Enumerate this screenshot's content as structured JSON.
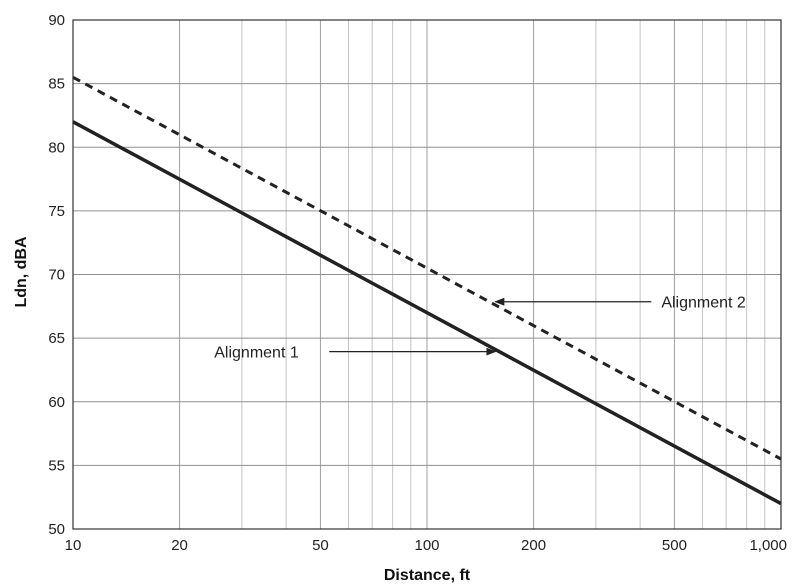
{
  "chart_data": {
    "type": "line",
    "xlabel": "Distance, ft",
    "ylabel": "Ldn, dBA",
    "x_scale": "log",
    "xlim": [
      10,
      1000
    ],
    "ylim": [
      50,
      90
    ],
    "grid": true,
    "x_ticks": [
      {
        "value": 10,
        "label": "10"
      },
      {
        "value": 20,
        "label": "20"
      },
      {
        "value": 50,
        "label": "50"
      },
      {
        "value": 100,
        "label": "100"
      },
      {
        "value": 200,
        "label": "200"
      },
      {
        "value": 500,
        "label": "500"
      },
      {
        "value": 1000,
        "label": "1,000"
      }
    ],
    "x_minor_gridlines": [
      30,
      40,
      60,
      70,
      80,
      90,
      300,
      400,
      600,
      700,
      800,
      900
    ],
    "y_ticks": [
      50,
      55,
      60,
      65,
      70,
      75,
      80,
      85,
      90
    ],
    "series": [
      {
        "name": "Alignment 1",
        "style": "solid",
        "x": [
          10,
          1000
        ],
        "y": [
          82,
          52
        ]
      },
      {
        "name": "Alignment 2",
        "style": "dashed",
        "x": [
          10,
          1000
        ],
        "y": [
          85.5,
          55.5
        ]
      }
    ],
    "annotations": [
      {
        "text": "Alignment 1",
        "series": "Alignment 1",
        "arrow_x": 160,
        "text_side": "left"
      },
      {
        "text": "Alignment 2",
        "series": "Alignment 2",
        "arrow_x": 150,
        "text_side": "right"
      }
    ]
  }
}
